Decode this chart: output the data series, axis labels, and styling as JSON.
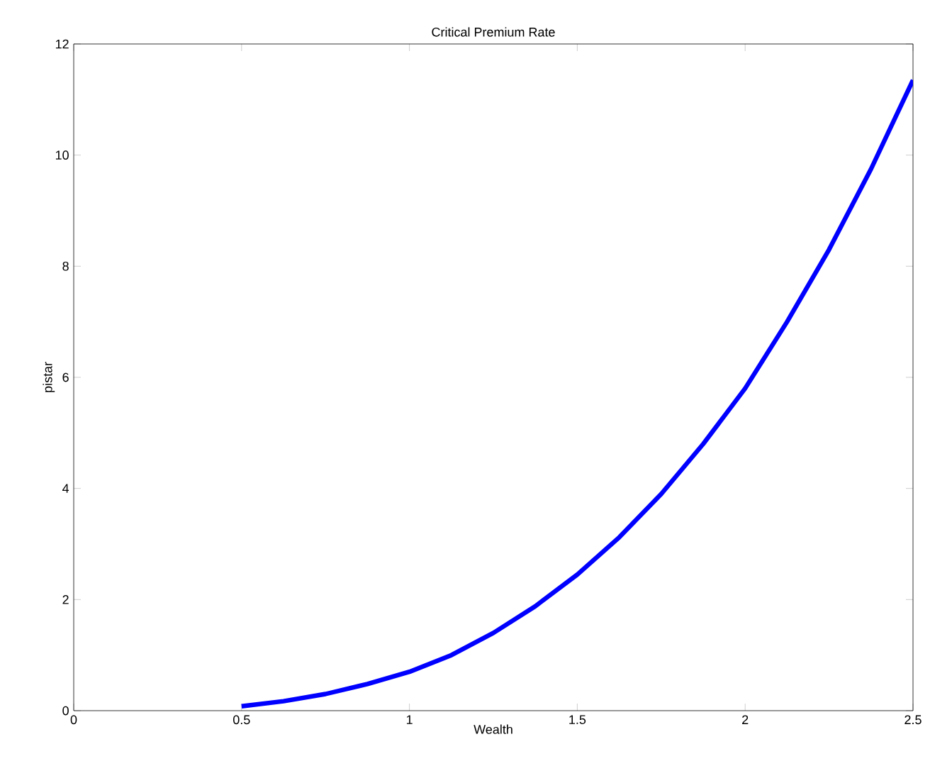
{
  "chart_data": {
    "type": "line",
    "title": "Critical Premium Rate",
    "xlabel": "Wealth",
    "ylabel": "pistar",
    "x": [
      0.5,
      0.625,
      0.75,
      0.875,
      1,
      1.125,
      1.25,
      1.375,
      1.5,
      1.625,
      1.75,
      1.875,
      2,
      2.125,
      2.25,
      2.375,
      2.5
    ],
    "series": [
      {
        "color": "#0000ff",
        "values": [
          0.08,
          0.17,
          0.3,
          0.48,
          0.7,
          1.0,
          1.4,
          1.88,
          2.45,
          3.12,
          3.9,
          4.8,
          5.8,
          7.0,
          8.3,
          9.75,
          11.35
        ]
      }
    ],
    "xlim": [
      0,
      2.5
    ],
    "ylim": [
      0,
      12
    ],
    "xticks": [
      0,
      0.5,
      1,
      1.5,
      2,
      2.5
    ],
    "yticks": [
      0,
      2,
      4,
      6,
      8,
      10,
      12
    ],
    "grid": false,
    "marker": "none",
    "line_style": "solid"
  }
}
